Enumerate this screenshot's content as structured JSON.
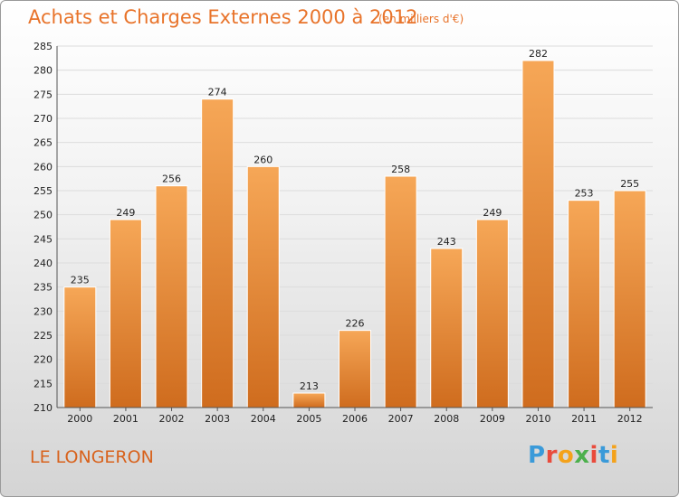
{
  "header": {
    "title": "Achats et Charges Externes 2000 à 2012",
    "unit": "(en milliers d'€)"
  },
  "footer": {
    "place": "LE LONGERON",
    "brand": "Proxiti",
    "brand_colors": [
      "#3a9ad9",
      "#e94b3c",
      "#f4a21b",
      "#4cb04c",
      "#e94b3c",
      "#3a9ad9",
      "#f4a21b"
    ]
  },
  "colors": {
    "bar_top": "#f6a757",
    "bar_bottom": "#cf6c1e",
    "grid": "#dcdcdc",
    "axis_text": "#222222",
    "title": "#e8732a"
  },
  "chart_data": {
    "type": "bar",
    "categories": [
      "2000",
      "2001",
      "2002",
      "2003",
      "2004",
      "2005",
      "2006",
      "2007",
      "2008",
      "2009",
      "2010",
      "2011",
      "2012"
    ],
    "values": [
      235,
      249,
      256,
      274,
      260,
      213,
      226,
      258,
      243,
      249,
      282,
      253,
      255
    ],
    "title": "Achats et Charges Externes 2000 à 2012",
    "ylim": [
      210,
      285
    ],
    "yticks": [
      210,
      215,
      220,
      225,
      230,
      235,
      240,
      245,
      250,
      255,
      260,
      265,
      270,
      275,
      280,
      285
    ],
    "grid": true,
    "data_labels": true
  }
}
